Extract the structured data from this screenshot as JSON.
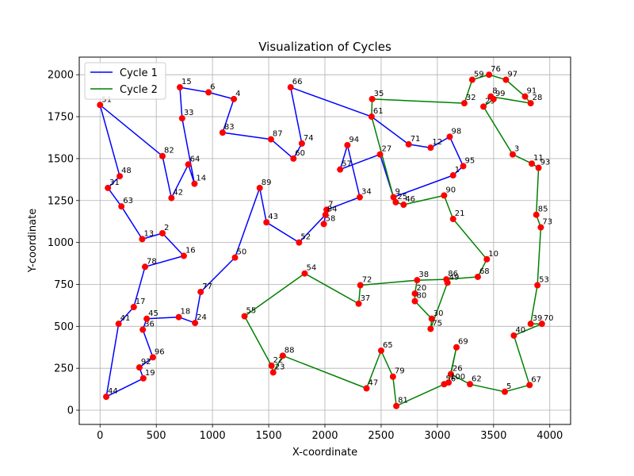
{
  "chart_data": {
    "type": "line",
    "title": "Visualization of Cycles",
    "xlabel": "X-coordinate",
    "ylabel": "Y-coordinate",
    "xlim": [
      -185,
      4185
    ],
    "ylim": [
      -85,
      2105
    ],
    "xticks": [
      0,
      500,
      1000,
      1500,
      2000,
      2500,
      3000,
      3500,
      4000
    ],
    "yticks": [
      0,
      250,
      500,
      750,
      1000,
      1250,
      1500,
      1750,
      2000
    ],
    "grid": true,
    "legend_position": "upper left",
    "point_color": "#ff0000",
    "points": [
      {
        "id": "1",
        "x": 3140,
        "y": 1400
      },
      {
        "id": "2",
        "x": 555,
        "y": 1055
      },
      {
        "id": "3",
        "x": 3670,
        "y": 1525
      },
      {
        "id": "4",
        "x": 1190,
        "y": 1855
      },
      {
        "id": "5",
        "x": 3600,
        "y": 110
      },
      {
        "id": "6",
        "x": 965,
        "y": 1895
      },
      {
        "id": "7",
        "x": 2015,
        "y": 1195
      },
      {
        "id": "8",
        "x": 3475,
        "y": 1870
      },
      {
        "id": "9",
        "x": 2610,
        "y": 1270
      },
      {
        "id": "10",
        "x": 3440,
        "y": 900
      },
      {
        "id": "11",
        "x": 3840,
        "y": 1470
      },
      {
        "id": "12",
        "x": 2940,
        "y": 1565
      },
      {
        "id": "13",
        "x": 375,
        "y": 1020
      },
      {
        "id": "14",
        "x": 840,
        "y": 1350
      },
      {
        "id": "15",
        "x": 710,
        "y": 1925
      },
      {
        "id": "16",
        "x": 745,
        "y": 920
      },
      {
        "id": "17",
        "x": 300,
        "y": 615
      },
      {
        "id": "18",
        "x": 700,
        "y": 555
      },
      {
        "id": "19",
        "x": 385,
        "y": 190
      },
      {
        "id": "20",
        "x": 2800,
        "y": 695
      },
      {
        "id": "21",
        "x": 3140,
        "y": 1140
      },
      {
        "id": "22",
        "x": 1525,
        "y": 265
      },
      {
        "id": "23",
        "x": 1540,
        "y": 225
      },
      {
        "id": "24",
        "x": 845,
        "y": 520
      },
      {
        "id": "25",
        "x": 2630,
        "y": 1240
      },
      {
        "id": "26",
        "x": 3120,
        "y": 215
      },
      {
        "id": "27",
        "x": 2490,
        "y": 1525
      },
      {
        "id": "28",
        "x": 3830,
        "y": 1830
      },
      {
        "id": "29",
        "x": 3410,
        "y": 1810
      },
      {
        "id": "30",
        "x": 2950,
        "y": 545
      },
      {
        "id": "31",
        "x": 70,
        "y": 1325
      },
      {
        "id": "32",
        "x": 3240,
        "y": 1830
      },
      {
        "id": "33",
        "x": 730,
        "y": 1740
      },
      {
        "id": "34",
        "x": 2310,
        "y": 1270
      },
      {
        "id": "35",
        "x": 2420,
        "y": 1855
      },
      {
        "id": "36",
        "x": 380,
        "y": 480
      },
      {
        "id": "37",
        "x": 2300,
        "y": 635
      },
      {
        "id": "38",
        "x": 2820,
        "y": 775
      },
      {
        "id": "39",
        "x": 3830,
        "y": 515
      },
      {
        "id": "40",
        "x": 3680,
        "y": 445
      },
      {
        "id": "41",
        "x": 165,
        "y": 515
      },
      {
        "id": "42",
        "x": 635,
        "y": 1265
      },
      {
        "id": "43",
        "x": 1480,
        "y": 1120
      },
      {
        "id": "44",
        "x": 55,
        "y": 80
      },
      {
        "id": "45",
        "x": 415,
        "y": 545
      },
      {
        "id": "46",
        "x": 2700,
        "y": 1225
      },
      {
        "id": "47",
        "x": 2370,
        "y": 130
      },
      {
        "id": "48",
        "x": 175,
        "y": 1395
      },
      {
        "id": "49",
        "x": 3090,
        "y": 760
      },
      {
        "id": "50",
        "x": 1200,
        "y": 910
      },
      {
        "id": "51",
        "x": 0,
        "y": 1820
      },
      {
        "id": "52",
        "x": 1770,
        "y": 1000
      },
      {
        "id": "53",
        "x": 3890,
        "y": 745
      },
      {
        "id": "54",
        "x": 1820,
        "y": 815
      },
      {
        "id": "55",
        "x": 1285,
        "y": 560
      },
      {
        "id": "56",
        "x": 3060,
        "y": 155
      },
      {
        "id": "57",
        "x": 2135,
        "y": 1435
      },
      {
        "id": "58",
        "x": 1990,
        "y": 1110
      },
      {
        "id": "59",
        "x": 3310,
        "y": 1970
      },
      {
        "id": "60",
        "x": 1720,
        "y": 1500
      },
      {
        "id": "61",
        "x": 2415,
        "y": 1750
      },
      {
        "id": "62",
        "x": 3290,
        "y": 155
      },
      {
        "id": "63",
        "x": 190,
        "y": 1215
      },
      {
        "id": "64",
        "x": 785,
        "y": 1465
      },
      {
        "id": "65",
        "x": 2500,
        "y": 355
      },
      {
        "id": "66",
        "x": 1695,
        "y": 1925
      },
      {
        "id": "67",
        "x": 3820,
        "y": 150
      },
      {
        "id": "68",
        "x": 3360,
        "y": 795
      },
      {
        "id": "69",
        "x": 3170,
        "y": 375
      },
      {
        "id": "70",
        "x": 3930,
        "y": 515
      },
      {
        "id": "71",
        "x": 2745,
        "y": 1585
      },
      {
        "id": "72",
        "x": 2315,
        "y": 745
      },
      {
        "id": "73",
        "x": 3920,
        "y": 1090
      },
      {
        "id": "74",
        "x": 1795,
        "y": 1590
      },
      {
        "id": "75",
        "x": 2940,
        "y": 485
      },
      {
        "id": "76",
        "x": 3460,
        "y": 2000
      },
      {
        "id": "77",
        "x": 895,
        "y": 705
      },
      {
        "id": "78",
        "x": 400,
        "y": 855
      },
      {
        "id": "79",
        "x": 2605,
        "y": 200
      },
      {
        "id": "80",
        "x": 2800,
        "y": 650
      },
      {
        "id": "81",
        "x": 2635,
        "y": 25
      },
      {
        "id": "82",
        "x": 555,
        "y": 1515
      },
      {
        "id": "83",
        "x": 1090,
        "y": 1655
      },
      {
        "id": "84",
        "x": 2005,
        "y": 1165
      },
      {
        "id": "85",
        "x": 3880,
        "y": 1165
      },
      {
        "id": "86",
        "x": 3080,
        "y": 780
      },
      {
        "id": "87",
        "x": 1520,
        "y": 1615
      },
      {
        "id": "88",
        "x": 1625,
        "y": 325
      },
      {
        "id": "89",
        "x": 1420,
        "y": 1325
      },
      {
        "id": "90",
        "x": 3060,
        "y": 1280
      },
      {
        "id": "91",
        "x": 3780,
        "y": 1870
      },
      {
        "id": "92",
        "x": 350,
        "y": 255
      },
      {
        "id": "93",
        "x": 3900,
        "y": 1445
      },
      {
        "id": "94",
        "x": 2200,
        "y": 1580
      },
      {
        "id": "95",
        "x": 3230,
        "y": 1455
      },
      {
        "id": "96",
        "x": 470,
        "y": 315
      },
      {
        "id": "97",
        "x": 3610,
        "y": 1970
      },
      {
        "id": "98",
        "x": 3110,
        "y": 1630
      },
      {
        "id": "99",
        "x": 3500,
        "y": 1855
      }
    ],
    "series": [
      {
        "name": "Cycle 1",
        "color": "#0000ff",
        "path": [
          "51",
          "82",
          "42",
          "64",
          "14",
          "33",
          "15",
          "6",
          "4",
          "83",
          "87",
          "60",
          "74",
          "66",
          "61",
          "71",
          "12",
          "98",
          "95",
          "1",
          "9",
          "27",
          "57",
          "94",
          "34",
          "7",
          "58",
          "84",
          "52",
          "43",
          "89",
          "50",
          "77",
          "24",
          "18",
          "45",
          "36",
          "96",
          "92",
          "19",
          "44",
          "41",
          "17",
          "78",
          "16",
          "2",
          "13",
          "63",
          "31",
          "48",
          "51"
        ]
      },
      {
        "name": "Cycle 2",
        "color": "#008000",
        "path": [
          "35",
          "32",
          "59",
          "76",
          "97",
          "91",
          "28",
          "8",
          "99",
          "29",
          "3",
          "11",
          "93",
          "85",
          "73",
          "53",
          "39",
          "70",
          "40",
          "67",
          "5",
          "62",
          "26",
          "69",
          "100",
          "56",
          "81",
          "79",
          "65",
          "47",
          "88",
          "23",
          "22",
          "55",
          "54",
          "37",
          "72",
          "38",
          "86",
          "49",
          "75",
          "30",
          "80",
          "20",
          "38",
          "86",
          "68",
          "10",
          "21",
          "90",
          "46",
          "25",
          "9",
          "61",
          "35"
        ]
      }
    ],
    "extra_points": [
      {
        "id": "100",
        "x": 3100,
        "y": 165
      }
    ]
  }
}
